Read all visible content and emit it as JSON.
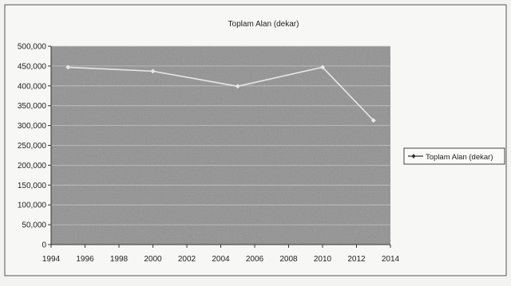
{
  "chart_data": {
    "type": "line",
    "title": "Toplam Alan (dekar)",
    "xlabel": "",
    "ylabel": "",
    "x": [
      1995,
      2000,
      2005,
      2010,
      2013
    ],
    "series": [
      {
        "name": "Toplam Alan (dekar)",
        "values": [
          447000,
          437000,
          399000,
          447000,
          313000
        ]
      }
    ],
    "xlim": [
      1994,
      2014
    ],
    "ylim": [
      0,
      500000
    ],
    "x_ticks": [
      "1994",
      "1996",
      "1998",
      "2000",
      "2002",
      "2004",
      "2006",
      "2008",
      "2010",
      "2012",
      "2014"
    ],
    "y_ticks": [
      "0",
      "50,000",
      "100,000",
      "150,000",
      "200,000",
      "250,000",
      "300,000",
      "350,000",
      "400,000",
      "450,000",
      "500,000"
    ],
    "grid": true,
    "legend_position": "right",
    "colors": {
      "plot_area": "#8f8f8f",
      "line": "#e8e8e8",
      "grid": "#c4c4c4",
      "background": "#f3f3f1"
    }
  }
}
